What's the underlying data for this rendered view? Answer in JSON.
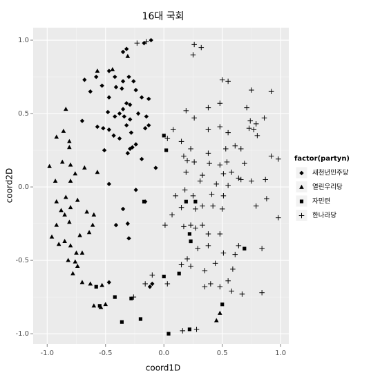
{
  "chart_data": {
    "type": "scatter",
    "title": "16대 국회",
    "x_label": "coord1D",
    "y_label": "coord2D",
    "legend_title": "factor(partyn)",
    "legend": "right",
    "grid": true,
    "xlim": [
      -1.12,
      1.07
    ],
    "ylim": [
      -1.07,
      1.085
    ],
    "xticks": [
      {
        "value": -1,
        "label": "-1.0"
      },
      {
        "value": -0.5,
        "label": "-0.5"
      },
      {
        "value": 0,
        "label": "0.0"
      },
      {
        "value": 0.5,
        "label": "0.5"
      },
      {
        "value": 1,
        "label": "1.0"
      }
    ],
    "yticks": [
      {
        "value": -1,
        "label": "-1.0"
      },
      {
        "value": -0.5,
        "label": "-0.5"
      },
      {
        "value": 0,
        "label": "0.0"
      },
      {
        "value": 0.5,
        "label": "0.5"
      },
      {
        "value": 1,
        "label": "1.0"
      }
    ],
    "x_minor_breaks": [
      -0.75,
      -0.25,
      0.25,
      0.75
    ],
    "y_minor_breaks": [
      -0.75,
      -0.25,
      0.25,
      0.75
    ],
    "series": [
      {
        "name": "새천년민주당",
        "shape": "diamond",
        "color": "#000000",
        "x": [
          -0.11,
          -0.17,
          -0.32,
          -0.35,
          -0.68,
          -0.58,
          -0.47,
          -0.42,
          -0.35,
          -0.3,
          -0.26,
          -0.53,
          -0.63,
          -0.36,
          -0.41,
          -0.24,
          -0.19,
          -0.13,
          -0.47,
          -0.32,
          -0.35,
          -0.29,
          -0.48,
          -0.42,
          -0.38,
          -0.34,
          -0.22,
          -0.15,
          -0.13,
          -0.16,
          -0.29,
          -0.32,
          -0.57,
          -0.52,
          -0.47,
          -0.43,
          -0.7,
          -0.38,
          -0.28,
          -0.27,
          -0.29,
          -0.24,
          -0.31,
          -0.51,
          -0.19,
          -0.07,
          -0.24,
          -0.16,
          -0.47,
          -0.35,
          -0.31,
          -0.41,
          -0.3,
          -0.12,
          -0.1,
          -0.47
        ],
        "values": [
          1.0,
          0.98,
          0.94,
          0.92,
          0.73,
          0.75,
          0.79,
          0.75,
          0.72,
          0.75,
          0.72,
          0.69,
          0.65,
          0.67,
          0.68,
          0.66,
          0.61,
          0.6,
          0.61,
          0.57,
          0.53,
          0.56,
          0.51,
          0.48,
          0.5,
          0.48,
          0.5,
          0.48,
          0.42,
          0.4,
          0.46,
          0.42,
          0.41,
          0.4,
          0.39,
          0.35,
          0.45,
          0.33,
          0.37,
          0.27,
          0.26,
          0.29,
          0.23,
          0.25,
          0.19,
          0.13,
          -0.02,
          -0.1,
          0.02,
          -0.15,
          -0.25,
          -0.26,
          -0.35,
          -0.68,
          -0.66,
          -0.65
        ]
      },
      {
        "name": "열린우리당",
        "shape": "triangle",
        "color": "#000000",
        "x": [
          -0.84,
          -0.92,
          -0.86,
          -0.81,
          -0.81,
          -0.87,
          -0.98,
          -0.8,
          -0.76,
          -0.68,
          -0.93,
          -0.8,
          -0.84,
          -0.74,
          -0.92,
          -0.88,
          -0.85,
          -0.8,
          -0.81,
          -0.66,
          -0.6,
          -0.61,
          -0.64,
          -0.72,
          -0.92,
          -0.96,
          -0.9,
          -0.85,
          -0.8,
          -0.75,
          -0.7,
          -0.82,
          -0.76,
          -0.74,
          -0.78,
          -0.7,
          -0.63,
          -0.53,
          -0.5,
          -0.54,
          -0.6,
          0.48,
          0.45,
          -0.57,
          -0.44,
          -0.31,
          -0.57
        ],
        "values": [
          0.53,
          0.34,
          0.38,
          0.31,
          0.27,
          0.17,
          0.14,
          0.15,
          0.09,
          0.13,
          0.04,
          0.04,
          -0.07,
          -0.09,
          -0.1,
          -0.16,
          -0.19,
          -0.14,
          -0.24,
          -0.17,
          -0.19,
          -0.26,
          -0.31,
          -0.33,
          -0.26,
          -0.34,
          -0.39,
          -0.37,
          -0.4,
          -0.45,
          -0.45,
          -0.5,
          -0.51,
          -0.54,
          -0.59,
          -0.65,
          -0.66,
          -0.67,
          -0.8,
          -0.82,
          -0.81,
          -0.86,
          -0.91,
          0.79,
          0.8,
          0.89,
          0.1
        ]
      },
      {
        "name": "자민련",
        "shape": "square",
        "color": "#000000",
        "x": [
          0.0,
          0.02,
          -0.17,
          0.19,
          0.27,
          0.22,
          0.23,
          0.0,
          0.13,
          0.69,
          0.5,
          -0.28,
          -0.42,
          -0.58,
          -0.55,
          -0.36,
          -0.2,
          0.22,
          0.04
        ],
        "values": [
          0.35,
          0.25,
          -0.1,
          -0.1,
          -0.1,
          -0.32,
          -0.37,
          -0.61,
          -0.59,
          -0.42,
          -0.8,
          -0.76,
          -0.75,
          -0.68,
          -0.81,
          -0.92,
          -0.9,
          -0.97,
          -1.0
        ]
      },
      {
        "name": "한나라당",
        "shape": "plus",
        "color": "#000000",
        "x": [
          -0.23,
          -0.15,
          0.26,
          0.32,
          0.25,
          0.5,
          0.55,
          0.75,
          0.92,
          0.19,
          0.26,
          0.38,
          0.48,
          0.71,
          0.86,
          0.74,
          0.79,
          0.77,
          0.8,
          0.48,
          0.55,
          0.73,
          0.38,
          0.08,
          0.03,
          0.15,
          0.23,
          0.38,
          0.53,
          0.61,
          0.66,
          0.17,
          0.2,
          0.26,
          0.39,
          0.48,
          0.54,
          0.69,
          0.58,
          0.51,
          0.33,
          0.19,
          0.31,
          0.45,
          0.55,
          0.64,
          0.75,
          0.87,
          0.41,
          0.51,
          0.18,
          0.25,
          0.1,
          0.33,
          0.15,
          0.5,
          0.79,
          0.88,
          0.07,
          0.01,
          0.17,
          0.23,
          0.27,
          0.38,
          0.48,
          0.33,
          0.38,
          0.29,
          0.51,
          0.61,
          0.84,
          0.44,
          0.23,
          0.2,
          0.15,
          0.64,
          0.59,
          0.35,
          0.35,
          0.4,
          0.48,
          0.58,
          0.67,
          0.03,
          0.55,
          0.84,
          -0.26,
          -0.1,
          -0.16,
          0.28,
          0.16,
          0.98,
          0.92,
          0.98,
          0.66,
          0.27,
          0.42
        ],
        "values": [
          0.98,
          0.99,
          0.97,
          0.95,
          0.9,
          0.73,
          0.72,
          0.66,
          0.65,
          0.52,
          0.47,
          0.54,
          0.57,
          0.54,
          0.47,
          0.45,
          0.43,
          0.39,
          0.35,
          0.41,
          0.37,
          0.4,
          0.39,
          0.39,
          0.33,
          0.31,
          0.26,
          0.23,
          0.26,
          0.28,
          0.26,
          0.21,
          0.18,
          0.17,
          0.16,
          0.15,
          0.17,
          0.16,
          0.1,
          0.09,
          0.08,
          0.1,
          0.04,
          0.02,
          0.01,
          0.06,
          0.04,
          0.05,
          -0.05,
          -0.06,
          -0.02,
          -0.06,
          -0.06,
          -0.13,
          -0.14,
          -0.15,
          -0.13,
          -0.08,
          -0.19,
          -0.26,
          -0.27,
          -0.26,
          -0.28,
          -0.32,
          -0.32,
          -0.26,
          -0.4,
          -0.42,
          -0.45,
          -0.46,
          -0.42,
          -0.52,
          -0.54,
          -0.49,
          -0.53,
          -0.4,
          -0.56,
          -0.57,
          -0.68,
          -0.66,
          -0.68,
          -0.71,
          -0.73,
          -0.66,
          -0.64,
          -0.72,
          -0.75,
          -0.6,
          -0.66,
          -0.97,
          -0.98,
          0.19,
          0.21,
          -0.21,
          0.05,
          -0.15,
          -0.13
        ]
      }
    ]
  }
}
